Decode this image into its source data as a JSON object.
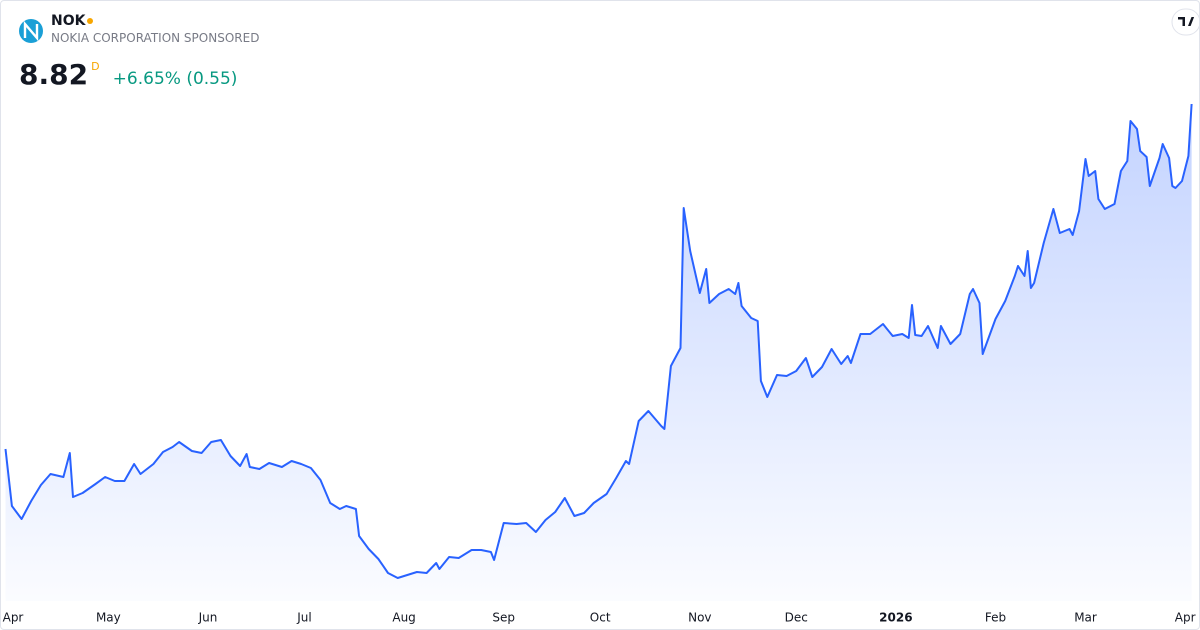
{
  "header": {
    "symbol": "NOK",
    "name": "NOKIA CORPORATION SPONSORED",
    "price": "8.82",
    "interval": "D",
    "change": "+6.65% (0.55)"
  },
  "chart_data": {
    "type": "area",
    "color": "#2962ff",
    "x": [
      -2,
      0,
      3,
      6,
      9,
      12,
      16,
      18,
      19,
      22,
      26,
      29,
      32,
      35,
      38,
      40,
      44,
      47,
      50,
      52,
      56,
      59,
      62,
      65,
      68,
      71,
      73,
      74,
      77,
      80,
      84,
      87,
      90,
      93,
      96,
      99,
      102,
      104,
      107,
      108,
      111,
      114,
      117,
      120,
      123,
      126,
      129,
      132,
      133,
      136,
      139,
      143,
      146,
      149,
      150,
      153,
      157,
      160,
      163,
      166,
      169,
      172,
      175,
      178,
      181,
      185,
      188,
      191,
      192,
      195,
      198,
      202,
      203,
      205,
      208,
      209,
      211,
      214,
      216,
      217,
      220,
      223,
      225,
      226,
      227,
      230,
      232,
      233,
      235,
      238,
      241,
      244,
      247,
      249,
      252,
      255,
      258,
      260,
      261,
      264,
      267,
      271,
      274,
      277,
      279,
      280,
      281,
      283,
      285,
      288,
      289,
      292,
      295,
      298,
      299,
      301,
      302,
      306,
      309,
      312,
      313,
      315,
      316,
      317,
      318,
      321,
      324,
      326,
      329,
      330,
      332,
      334,
      335,
      337,
      338,
      340,
      343,
      345,
      347,
      348,
      350,
      351,
      353,
      354,
      357,
      358,
      360,
      361,
      362,
      364,
      366,
      367
    ],
    "values": [
      5.37,
      4.8,
      4.67,
      4.85,
      5.01,
      5.12,
      5.09,
      5.33,
      4.89,
      4.93,
      5.02,
      5.09,
      5.05,
      5.05,
      5.22,
      5.12,
      5.22,
      5.34,
      5.39,
      5.44,
      5.35,
      5.33,
      5.44,
      5.46,
      5.3,
      5.2,
      5.32,
      5.19,
      5.17,
      5.23,
      5.19,
      5.25,
      5.22,
      5.18,
      5.06,
      4.83,
      4.77,
      4.8,
      4.77,
      4.5,
      4.37,
      4.27,
      4.13,
      4.08,
      4.11,
      4.14,
      4.13,
      4.23,
      4.17,
      4.29,
      4.28,
      4.36,
      4.36,
      4.34,
      4.26,
      4.63,
      4.62,
      4.63,
      4.54,
      4.66,
      4.74,
      4.88,
      4.7,
      4.73,
      4.83,
      4.92,
      5.08,
      5.25,
      5.22,
      5.65,
      5.75,
      5.6,
      5.57,
      6.2,
      6.38,
      7.78,
      7.35,
      6.93,
      7.17,
      6.83,
      6.92,
      6.97,
      6.92,
      7.03,
      6.8,
      6.68,
      6.65,
      6.05,
      5.89,
      6.11,
      6.1,
      6.15,
      6.28,
      6.09,
      6.19,
      6.37,
      6.22,
      6.3,
      6.23,
      6.52,
      6.52,
      6.62,
      6.5,
      6.52,
      6.48,
      6.81,
      6.51,
      6.5,
      6.6,
      6.38,
      6.6,
      6.42,
      6.52,
      6.92,
      6.97,
      6.83,
      6.32,
      6.67,
      6.85,
      7.1,
      7.2,
      7.1,
      7.35,
      6.98,
      7.03,
      7.43,
      7.77,
      7.53,
      7.57,
      7.51,
      7.75,
      8.27,
      8.1,
      8.15,
      7.87,
      7.77,
      7.82,
      8.15,
      8.25,
      8.65,
      8.57,
      8.35,
      8.29,
      8.0,
      8.28,
      8.42,
      8.28,
      8.0,
      7.98,
      8.05,
      8.3,
      8.82
    ],
    "xlim": [
      -3.4,
      369.3
    ],
    "ylim": [
      3.85,
      9.85
    ],
    "xticks": [
      {
        "value": 0,
        "label": "Apr"
      },
      {
        "value": 30,
        "label": "May"
      },
      {
        "value": 61,
        "label": "Jun"
      },
      {
        "value": 91,
        "label": "Jul"
      },
      {
        "value": 122,
        "label": "Aug"
      },
      {
        "value": 153,
        "label": "Sep"
      },
      {
        "value": 183,
        "label": "Oct"
      },
      {
        "value": 214,
        "label": "Nov"
      },
      {
        "value": 244,
        "label": "Dec"
      },
      {
        "value": 275,
        "label": "2026"
      },
      {
        "value": 306,
        "label": "Feb"
      },
      {
        "value": 334,
        "label": "Mar"
      },
      {
        "value": 365,
        "label": "Apr"
      }
    ],
    "grid": false
  }
}
